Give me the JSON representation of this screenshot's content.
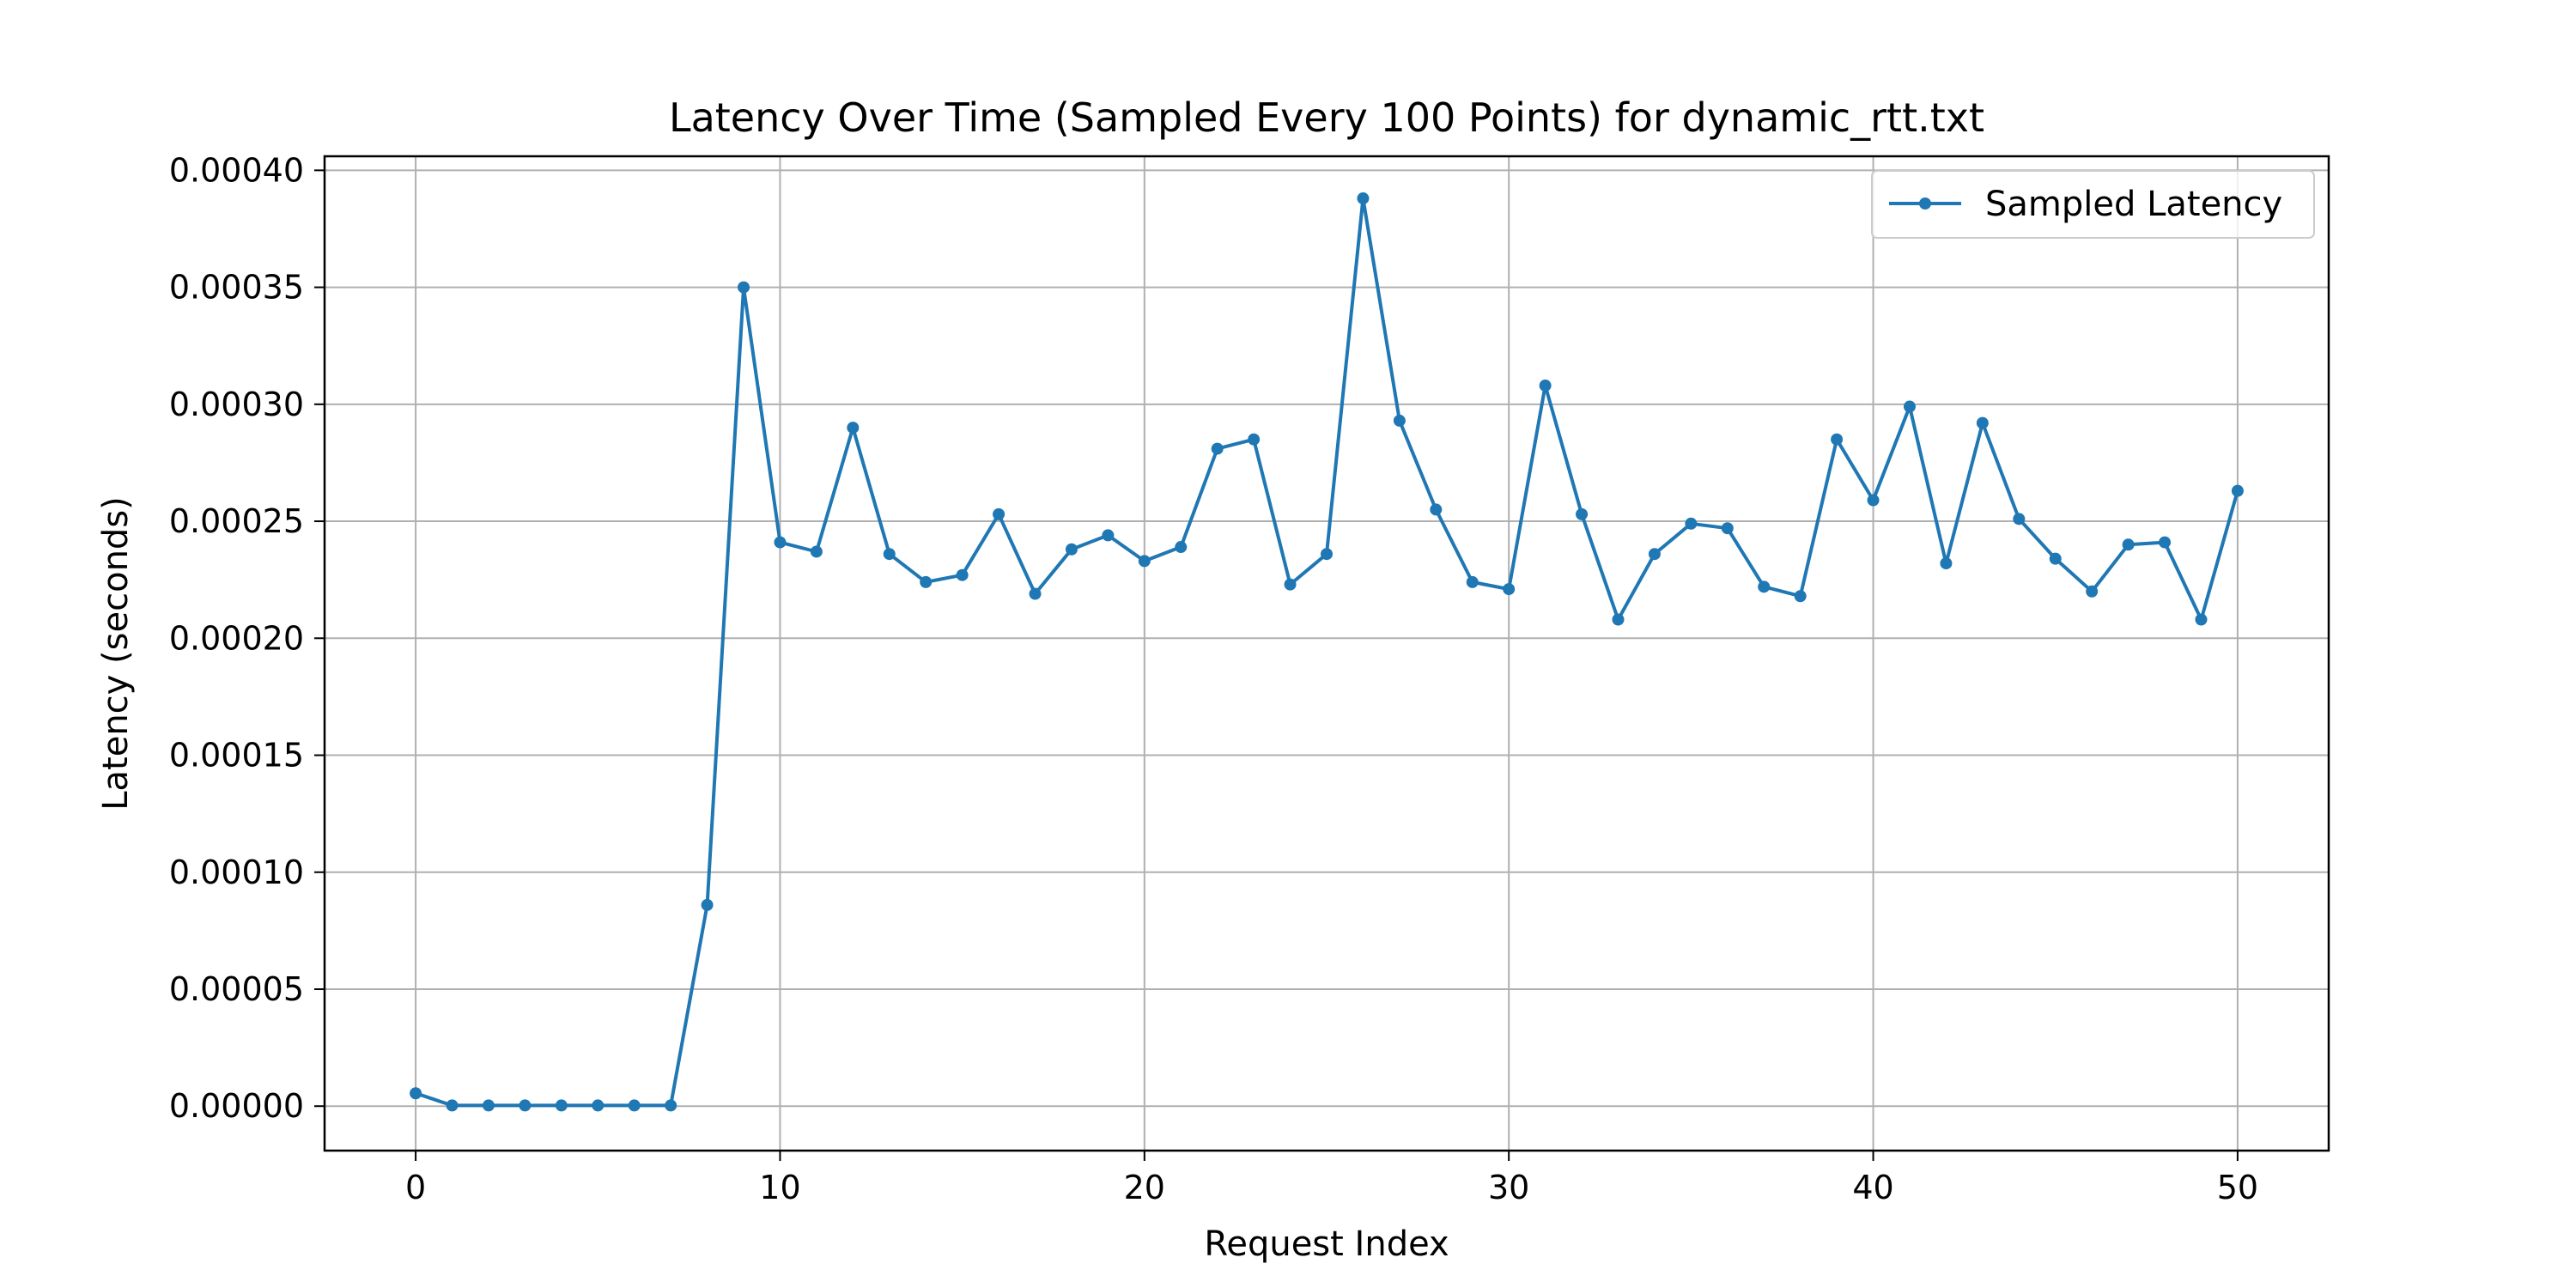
{
  "chart_data": {
    "type": "line",
    "title": "Latency Over Time (Sampled Every 100 Points) for dynamic_rtt.txt",
    "xlabel": "Request Index",
    "ylabel": "Latency (seconds)",
    "xlim": [
      -2.5,
      52.5
    ],
    "ylim": [
      -1.9e-05,
      0.000406
    ],
    "xticks": [
      0,
      10,
      20,
      30,
      40,
      50
    ],
    "xtick_labels": [
      "0",
      "10",
      "20",
      "30",
      "40",
      "50"
    ],
    "yticks": [
      0,
      5e-05,
      0.0001,
      0.00015,
      0.0002,
      0.00025,
      0.0003,
      0.00035,
      0.0004
    ],
    "ytick_labels": [
      "0.00000",
      "0.00005",
      "0.00010",
      "0.00015",
      "0.00020",
      "0.00025",
      "0.00030",
      "0.00035",
      "0.00040"
    ],
    "grid": true,
    "legend_position": "top-right",
    "color": "#1f77b4",
    "series": [
      {
        "name": "Sampled Latency",
        "x": [
          0,
          1,
          2,
          3,
          4,
          5,
          6,
          7,
          8,
          9,
          10,
          11,
          12,
          13,
          14,
          15,
          16,
          17,
          18,
          19,
          20,
          21,
          22,
          23,
          24,
          25,
          26,
          27,
          28,
          29,
          30,
          31,
          32,
          33,
          34,
          35,
          36,
          37,
          38,
          39,
          40,
          41,
          42,
          43,
          44,
          45,
          46,
          47,
          48,
          49,
          50
        ],
        "y": [
          5.5e-06,
          3e-07,
          3e-07,
          3e-07,
          3e-07,
          3e-07,
          3e-07,
          3e-07,
          8.6e-05,
          0.00035,
          0.000241,
          0.000237,
          0.00029,
          0.000236,
          0.000224,
          0.000227,
          0.000253,
          0.000219,
          0.000238,
          0.000244,
          0.000233,
          0.000239,
          0.000281,
          0.000285,
          0.000223,
          0.000236,
          0.000388,
          0.000293,
          0.000255,
          0.000224,
          0.000221,
          0.000308,
          0.000253,
          0.000208,
          0.000236,
          0.000249,
          0.000247,
          0.000222,
          0.000218,
          0.000285,
          0.000259,
          0.000299,
          0.000232,
          0.000292,
          0.000251,
          0.000234,
          0.00022,
          0.00024,
          0.000241,
          0.000208,
          0.000263
        ]
      }
    ]
  }
}
